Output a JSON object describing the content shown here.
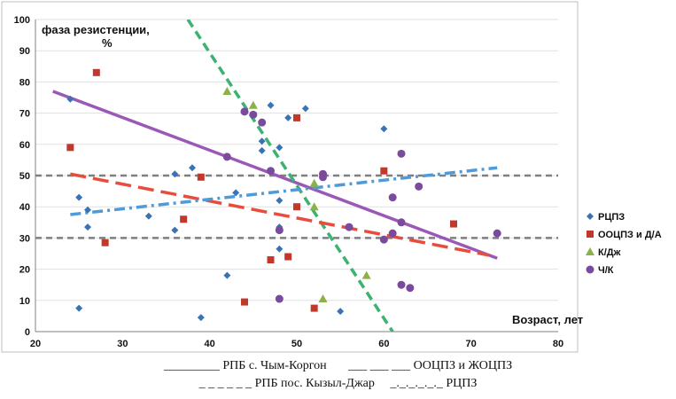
{
  "chart_data": {
    "type": "scatter",
    "xlabel": "Возраст, лет",
    "ylabel_line1": "фаза резистенции,",
    "ylabel_line2": "%",
    "xlim": [
      20,
      80
    ],
    "ylim": [
      0,
      100
    ],
    "xticks": [
      20,
      30,
      40,
      50,
      60,
      70,
      80
    ],
    "yticks": [
      0,
      10,
      20,
      30,
      40,
      50,
      60,
      70,
      80,
      90,
      100
    ],
    "grid": true,
    "legend_position": "right",
    "series": [
      {
        "name": "РЦПЗ",
        "marker": "diamond",
        "color": "#3a73b5",
        "points": [
          [
            24,
            74.5
          ],
          [
            25,
            43
          ],
          [
            25,
            7.5
          ],
          [
            26,
            39
          ],
          [
            26,
            33.5
          ],
          [
            33,
            37
          ],
          [
            36,
            50.5
          ],
          [
            36,
            32.5
          ],
          [
            38,
            52.5
          ],
          [
            39,
            4.5
          ],
          [
            42,
            18
          ],
          [
            43,
            44.5
          ],
          [
            44,
            70.5
          ],
          [
            46,
            61
          ],
          [
            46,
            58
          ],
          [
            47,
            72.5
          ],
          [
            48,
            59
          ],
          [
            48,
            42
          ],
          [
            48,
            33.5
          ],
          [
            48,
            26.5
          ],
          [
            49,
            68.5
          ],
          [
            51,
            71.5
          ],
          [
            55,
            6.5
          ],
          [
            60,
            65
          ]
        ]
      },
      {
        "name": "ООЦПЗ и Д/А",
        "marker": "square",
        "color": "#c0392b",
        "points": [
          [
            24,
            59
          ],
          [
            27,
            83
          ],
          [
            28,
            28.5
          ],
          [
            37,
            36
          ],
          [
            39,
            49.5
          ],
          [
            44,
            9.5
          ],
          [
            47,
            23
          ],
          [
            49,
            24
          ],
          [
            50,
            68.5
          ],
          [
            50,
            40
          ],
          [
            52,
            7.5
          ],
          [
            60,
            51.5
          ],
          [
            68,
            34.5
          ]
        ]
      },
      {
        "name": "К/Дж",
        "marker": "triangle",
        "color": "#8cb14a",
        "points": [
          [
            42,
            77
          ],
          [
            45,
            72.5
          ],
          [
            52,
            40
          ],
          [
            52,
            47.5
          ],
          [
            53,
            10.5
          ],
          [
            58,
            18
          ]
        ]
      },
      {
        "name": "Ч/К",
        "marker": "circle",
        "color": "#7a4a9c",
        "points": [
          [
            42,
            56
          ],
          [
            44,
            70.5
          ],
          [
            45,
            69.5
          ],
          [
            46,
            67
          ],
          [
            47,
            51.5
          ],
          [
            48,
            32.5
          ],
          [
            48,
            10.5
          ],
          [
            53,
            50.5
          ],
          [
            53,
            49.5
          ],
          [
            56,
            33.5
          ],
          [
            60,
            29.5
          ],
          [
            61,
            43
          ],
          [
            61,
            31.5
          ],
          [
            62,
            57
          ],
          [
            62,
            35
          ],
          [
            62,
            15
          ],
          [
            63,
            14
          ],
          [
            64,
            46.5
          ],
          [
            73,
            31.5
          ]
        ]
      }
    ],
    "lines": [
      {
        "label": "РПБ с. Чым-Коргон",
        "style": "solid",
        "color": "#9b59b6",
        "x": [
          22,
          73
        ],
        "y": [
          77,
          23.5
        ]
      },
      {
        "label": "ООЦПЗ и ЖОЦПЗ",
        "style": "dashed",
        "color": "#3cb371",
        "x": [
          37.5,
          61
        ],
        "y": [
          100,
          0
        ]
      },
      {
        "label": "РПБ пос. Кызыл-Джар",
        "style": "longdash",
        "color": "#e74c3c",
        "x": [
          24,
          72
        ],
        "y": [
          50.5,
          24.5
        ]
      },
      {
        "label": "РЦПЗ",
        "style": "dashdot",
        "color": "#4f9ad8",
        "x": [
          24,
          73
        ],
        "y": [
          37.5,
          52.5
        ]
      }
    ],
    "reference_lines": [
      50,
      30
    ]
  },
  "captions": {
    "line1": "_________ РПБ с. Чым-Коргон       ___ ___ ___ ООЦПЗ и ЖОЦПЗ",
    "line2": "_ _ _ _ _ _ РПБ пос. Кызыл-Джар     _._._._._._ РЦПЗ"
  }
}
